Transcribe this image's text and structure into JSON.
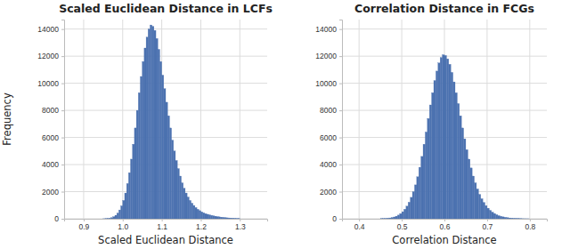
{
  "chart_data": [
    {
      "type": "histogram",
      "title": "Scaled Euclidean Distance in LCFs",
      "x_label": "Scaled Euclidean Distance",
      "y_label": "Frequency",
      "color": "#4c72b0",
      "grid": true,
      "xlim": [
        0.85,
        1.37
      ],
      "ylim": [
        0,
        14700
      ],
      "xticks": [
        0.9,
        {
          "value": 1,
          "label": "1.0"
        },
        1.1,
        1.2,
        1.3
      ],
      "yticks": [
        0,
        2000,
        4000,
        6000,
        8000,
        10000,
        12000,
        14000
      ],
      "bins": [
        0.95,
        0.955,
        0.96,
        0.965,
        0.97,
        0.975,
        0.98,
        0.985,
        0.99,
        0.995,
        1.0,
        1.005,
        1.01,
        1.015,
        1.02,
        1.025,
        1.03,
        1.035,
        1.04,
        1.045,
        1.05,
        1.055,
        1.06,
        1.065,
        1.07,
        1.075,
        1.08,
        1.085,
        1.09,
        1.095,
        1.1,
        1.105,
        1.11,
        1.115,
        1.12,
        1.125,
        1.13,
        1.135,
        1.14,
        1.145,
        1.15,
        1.155,
        1.16,
        1.165,
        1.17,
        1.175,
        1.18,
        1.185,
        1.19,
        1.195,
        1.2,
        1.205,
        1.21,
        1.215,
        1.22,
        1.225,
        1.23,
        1.235,
        1.24,
        1.245,
        1.25,
        1.255,
        1.26,
        1.265,
        1.27,
        1.275,
        1.28,
        1.285,
        1.29,
        1.295,
        1.3
      ],
      "values": [
        5,
        10,
        20,
        40,
        80,
        150,
        260,
        420,
        650,
        950,
        1350,
        1900,
        2600,
        3400,
        4400,
        5500,
        6700,
        8000,
        9300,
        10500,
        11600,
        12600,
        13400,
        14000,
        14300,
        14200,
        13900,
        13300,
        12500,
        11600,
        10600,
        9600,
        8600,
        7600,
        6700,
        5800,
        5000,
        4300,
        3700,
        3150,
        2650,
        2250,
        1900,
        1600,
        1350,
        1150,
        980,
        830,
        700,
        600,
        510,
        440,
        380,
        330,
        290,
        250,
        220,
        190,
        160,
        140,
        120,
        100,
        85,
        70,
        60,
        50,
        40,
        30,
        20,
        15
      ]
    },
    {
      "type": "histogram",
      "title": "Correlation Distance in FCGs",
      "x_label": "Correlation Distance",
      "color": "#4c72b0",
      "grid": true,
      "xlim": [
        0.36,
        0.84
      ],
      "ylim": [
        0,
        14700
      ],
      "xticks": [
        0.4,
        0.5,
        0.6,
        0.7,
        0.8
      ],
      "yticks": [
        0,
        2000,
        4000,
        6000,
        8000,
        10000,
        12000,
        14000
      ],
      "bins": [
        0.45,
        0.455,
        0.46,
        0.465,
        0.47,
        0.475,
        0.48,
        0.485,
        0.49,
        0.495,
        0.5,
        0.505,
        0.51,
        0.515,
        0.52,
        0.525,
        0.53,
        0.535,
        0.54,
        0.545,
        0.55,
        0.555,
        0.56,
        0.565,
        0.57,
        0.575,
        0.58,
        0.585,
        0.59,
        0.595,
        0.6,
        0.605,
        0.61,
        0.615,
        0.62,
        0.625,
        0.63,
        0.635,
        0.64,
        0.645,
        0.65,
        0.655,
        0.66,
        0.665,
        0.67,
        0.675,
        0.68,
        0.685,
        0.69,
        0.695,
        0.7,
        0.705,
        0.71,
        0.715,
        0.72,
        0.725,
        0.73,
        0.735,
        0.74,
        0.745,
        0.75,
        0.755,
        0.76,
        0.765,
        0.77,
        0.775,
        0.78,
        0.785,
        0.79,
        0.795,
        0.8
      ],
      "values": [
        10,
        15,
        25,
        40,
        60,
        90,
        130,
        190,
        270,
        380,
        520,
        700,
        930,
        1220,
        1580,
        2000,
        2500,
        3100,
        3800,
        4600,
        5500,
        6400,
        7400,
        8400,
        9300,
        10200,
        10900,
        11500,
        11900,
        12100,
        12050,
        11800,
        11400,
        10800,
        10100,
        9300,
        8500,
        7600,
        6700,
        5900,
        5100,
        4400,
        3750,
        3150,
        2650,
        2200,
        1800,
        1480,
        1200,
        970,
        780,
        620,
        490,
        390,
        300,
        230,
        180,
        140,
        105,
        80,
        60,
        45,
        33,
        24,
        17,
        12,
        8,
        5,
        3,
        2
      ]
    }
  ]
}
